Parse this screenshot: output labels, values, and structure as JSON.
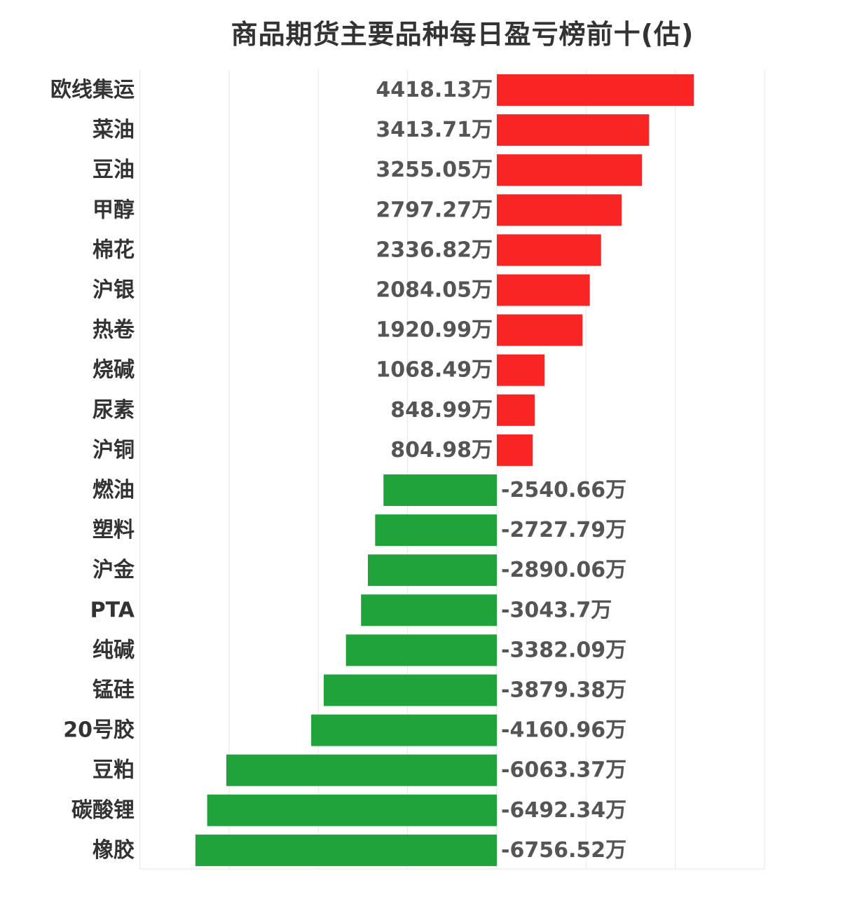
{
  "chart_data": {
    "type": "bar",
    "orientation": "horizontal",
    "title": "商品期货主要品种每日盈亏榜前十(估)",
    "unit": "万",
    "categories": [
      "欧线集运",
      "菜油",
      "豆油",
      "甲醇",
      "棉花",
      "沪银",
      "热卷",
      "烧碱",
      "尿素",
      "沪铜",
      "燃油",
      "塑料",
      "沪金",
      "PTA",
      "纯碱",
      "锰硅",
      "20号胶",
      "豆粕",
      "碳酸锂",
      "橡胶"
    ],
    "values": [
      4418.13,
      3413.71,
      3255.05,
      2797.27,
      2336.82,
      2084.05,
      1920.99,
      1068.49,
      848.99,
      804.98,
      -2540.66,
      -2727.79,
      -2890.06,
      -3043.7,
      -3382.09,
      -3879.38,
      -4160.96,
      -6063.37,
      -6492.34,
      -6756.52
    ],
    "value_labels": [
      "4418.13万",
      "3413.71万",
      "3255.05万",
      "2797.27万",
      "2336.82万",
      "2084.05万",
      "1920.99万",
      "1068.49万",
      "848.99万",
      "804.98万",
      "-2540.66万",
      "-2727.79万",
      "-2890.06万",
      "-3043.7万",
      "-3382.09万",
      "-3879.38万",
      "-4160.96万",
      "-6063.37万",
      "-6492.34万",
      "-6756.52万"
    ],
    "xlim": [
      -8000,
      6000
    ],
    "gridlines": [
      -8000,
      -6000,
      -4000,
      -2000,
      0,
      2000,
      4000,
      6000
    ],
    "grid": true,
    "colors": {
      "positive": "#f92525",
      "negative": "#1fa33a",
      "grid": "#e6e6e6"
    }
  }
}
